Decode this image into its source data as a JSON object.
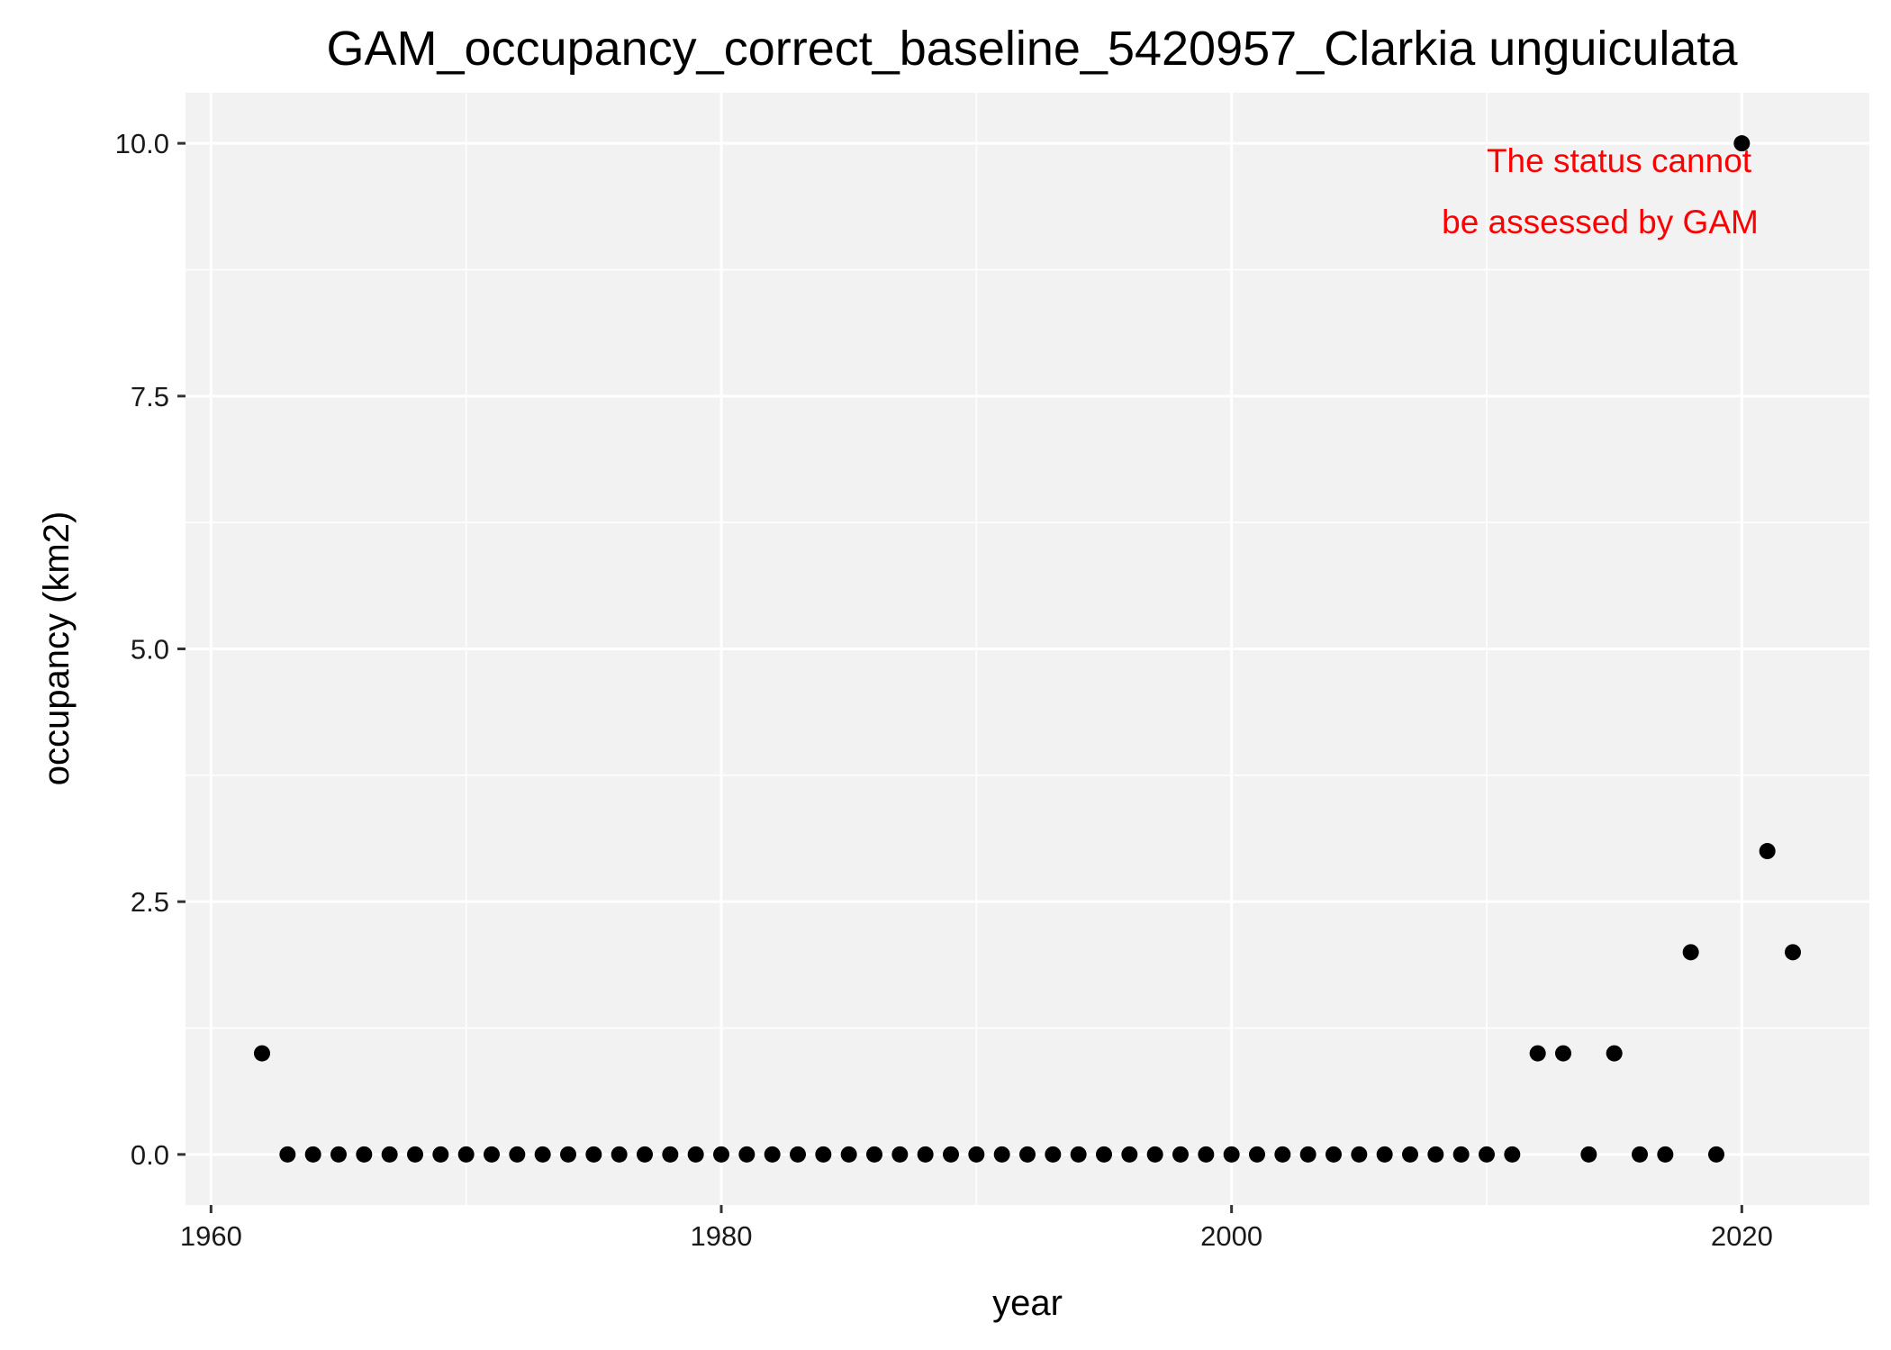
{
  "chart_data": {
    "type": "scatter",
    "title": "GAM_occupancy_correct_baseline_5420957_Clarkia unguiculata",
    "xlabel": "year",
    "ylabel": "occupancy (km2)",
    "xlim": [
      1959,
      2025
    ],
    "ylim": [
      -0.5,
      10.5
    ],
    "x_ticks": [
      1960,
      1980,
      2000,
      2020
    ],
    "y_ticks": [
      0.0,
      2.5,
      5.0,
      7.5,
      10.0
    ],
    "x_tick_labels": [
      "1960",
      "1980",
      "2000",
      "2020"
    ],
    "y_tick_labels": [
      "0.0",
      "2.5",
      "5.0",
      "7.5",
      "10.0"
    ],
    "grid": true,
    "background": "#f2f2f2",
    "grid_color": "#ffffff",
    "point_color": "#000000",
    "points": [
      {
        "x": 1962,
        "y": 1
      },
      {
        "x": 1963,
        "y": 0
      },
      {
        "x": 1964,
        "y": 0
      },
      {
        "x": 1965,
        "y": 0
      },
      {
        "x": 1966,
        "y": 0
      },
      {
        "x": 1967,
        "y": 0
      },
      {
        "x": 1968,
        "y": 0
      },
      {
        "x": 1969,
        "y": 0
      },
      {
        "x": 1970,
        "y": 0
      },
      {
        "x": 1971,
        "y": 0
      },
      {
        "x": 1972,
        "y": 0
      },
      {
        "x": 1973,
        "y": 0
      },
      {
        "x": 1974,
        "y": 0
      },
      {
        "x": 1975,
        "y": 0
      },
      {
        "x": 1976,
        "y": 0
      },
      {
        "x": 1977,
        "y": 0
      },
      {
        "x": 1978,
        "y": 0
      },
      {
        "x": 1979,
        "y": 0
      },
      {
        "x": 1980,
        "y": 0
      },
      {
        "x": 1981,
        "y": 0
      },
      {
        "x": 1982,
        "y": 0
      },
      {
        "x": 1983,
        "y": 0
      },
      {
        "x": 1984,
        "y": 0
      },
      {
        "x": 1985,
        "y": 0
      },
      {
        "x": 1986,
        "y": 0
      },
      {
        "x": 1987,
        "y": 0
      },
      {
        "x": 1988,
        "y": 0
      },
      {
        "x": 1989,
        "y": 0
      },
      {
        "x": 1990,
        "y": 0
      },
      {
        "x": 1991,
        "y": 0
      },
      {
        "x": 1992,
        "y": 0
      },
      {
        "x": 1993,
        "y": 0
      },
      {
        "x": 1994,
        "y": 0
      },
      {
        "x": 1995,
        "y": 0
      },
      {
        "x": 1996,
        "y": 0
      },
      {
        "x": 1997,
        "y": 0
      },
      {
        "x": 1998,
        "y": 0
      },
      {
        "x": 1999,
        "y": 0
      },
      {
        "x": 2000,
        "y": 0
      },
      {
        "x": 2001,
        "y": 0
      },
      {
        "x": 2002,
        "y": 0
      },
      {
        "x": 2003,
        "y": 0
      },
      {
        "x": 2004,
        "y": 0
      },
      {
        "x": 2005,
        "y": 0
      },
      {
        "x": 2006,
        "y": 0
      },
      {
        "x": 2007,
        "y": 0
      },
      {
        "x": 2008,
        "y": 0
      },
      {
        "x": 2009,
        "y": 0
      },
      {
        "x": 2010,
        "y": 0
      },
      {
        "x": 2011,
        "y": 0
      },
      {
        "x": 2012,
        "y": 1
      },
      {
        "x": 2013,
        "y": 1
      },
      {
        "x": 2014,
        "y": 0
      },
      {
        "x": 2015,
        "y": 1
      },
      {
        "x": 2016,
        "y": 0
      },
      {
        "x": 2017,
        "y": 0
      },
      {
        "x": 2018,
        "y": 2
      },
      {
        "x": 2019,
        "y": 0
      },
      {
        "x": 2020,
        "y": 10
      },
      {
        "x": 2021,
        "y": 3
      },
      {
        "x": 2022,
        "y": 2
      }
    ],
    "annotation": {
      "lines": [
        "The status cannot",
        "be assessed by GAM"
      ],
      "color": "#ff0000",
      "placement": "top-right"
    }
  }
}
